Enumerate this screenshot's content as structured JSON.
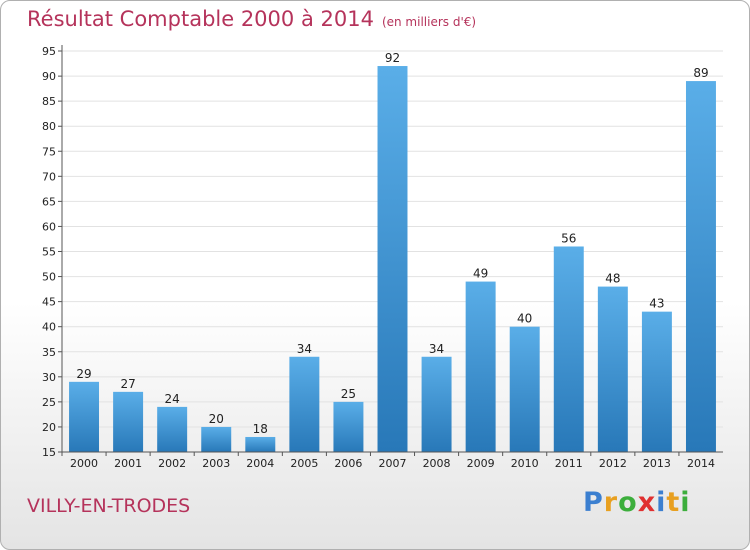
{
  "title": "Résultat Comptable 2000 à 2014",
  "subtitle": "(en milliers d'€)",
  "city": "VILLY-EN-TRODES",
  "logo": {
    "letters": [
      "P",
      "r",
      "o",
      "x",
      "i",
      "t",
      "i"
    ],
    "colors": [
      "#3b7fd0",
      "#e8a020",
      "#3cae3c",
      "#e03030",
      "#3b7fd0",
      "#e8a020",
      "#3cae3c"
    ]
  },
  "colors": {
    "bar_light": "#5aaee8",
    "bar_dark": "#2878b8",
    "title": "#b5335b"
  },
  "chart_data": {
    "type": "bar",
    "categories": [
      "2000",
      "2001",
      "2002",
      "2003",
      "2004",
      "2005",
      "2006",
      "2007",
      "2008",
      "2009",
      "2010",
      "2011",
      "2012",
      "2013",
      "2014"
    ],
    "values": [
      29,
      27,
      24,
      20,
      18,
      34,
      25,
      92,
      34,
      49,
      40,
      56,
      48,
      43,
      89
    ],
    "title": "Résultat Comptable 2000 à 2014",
    "xlabel": "",
    "ylabel": "",
    "ylim": [
      15,
      95
    ],
    "yticks": [
      15,
      20,
      25,
      30,
      35,
      40,
      45,
      50,
      55,
      60,
      65,
      70,
      75,
      80,
      85,
      90,
      95
    ],
    "grid": true
  }
}
